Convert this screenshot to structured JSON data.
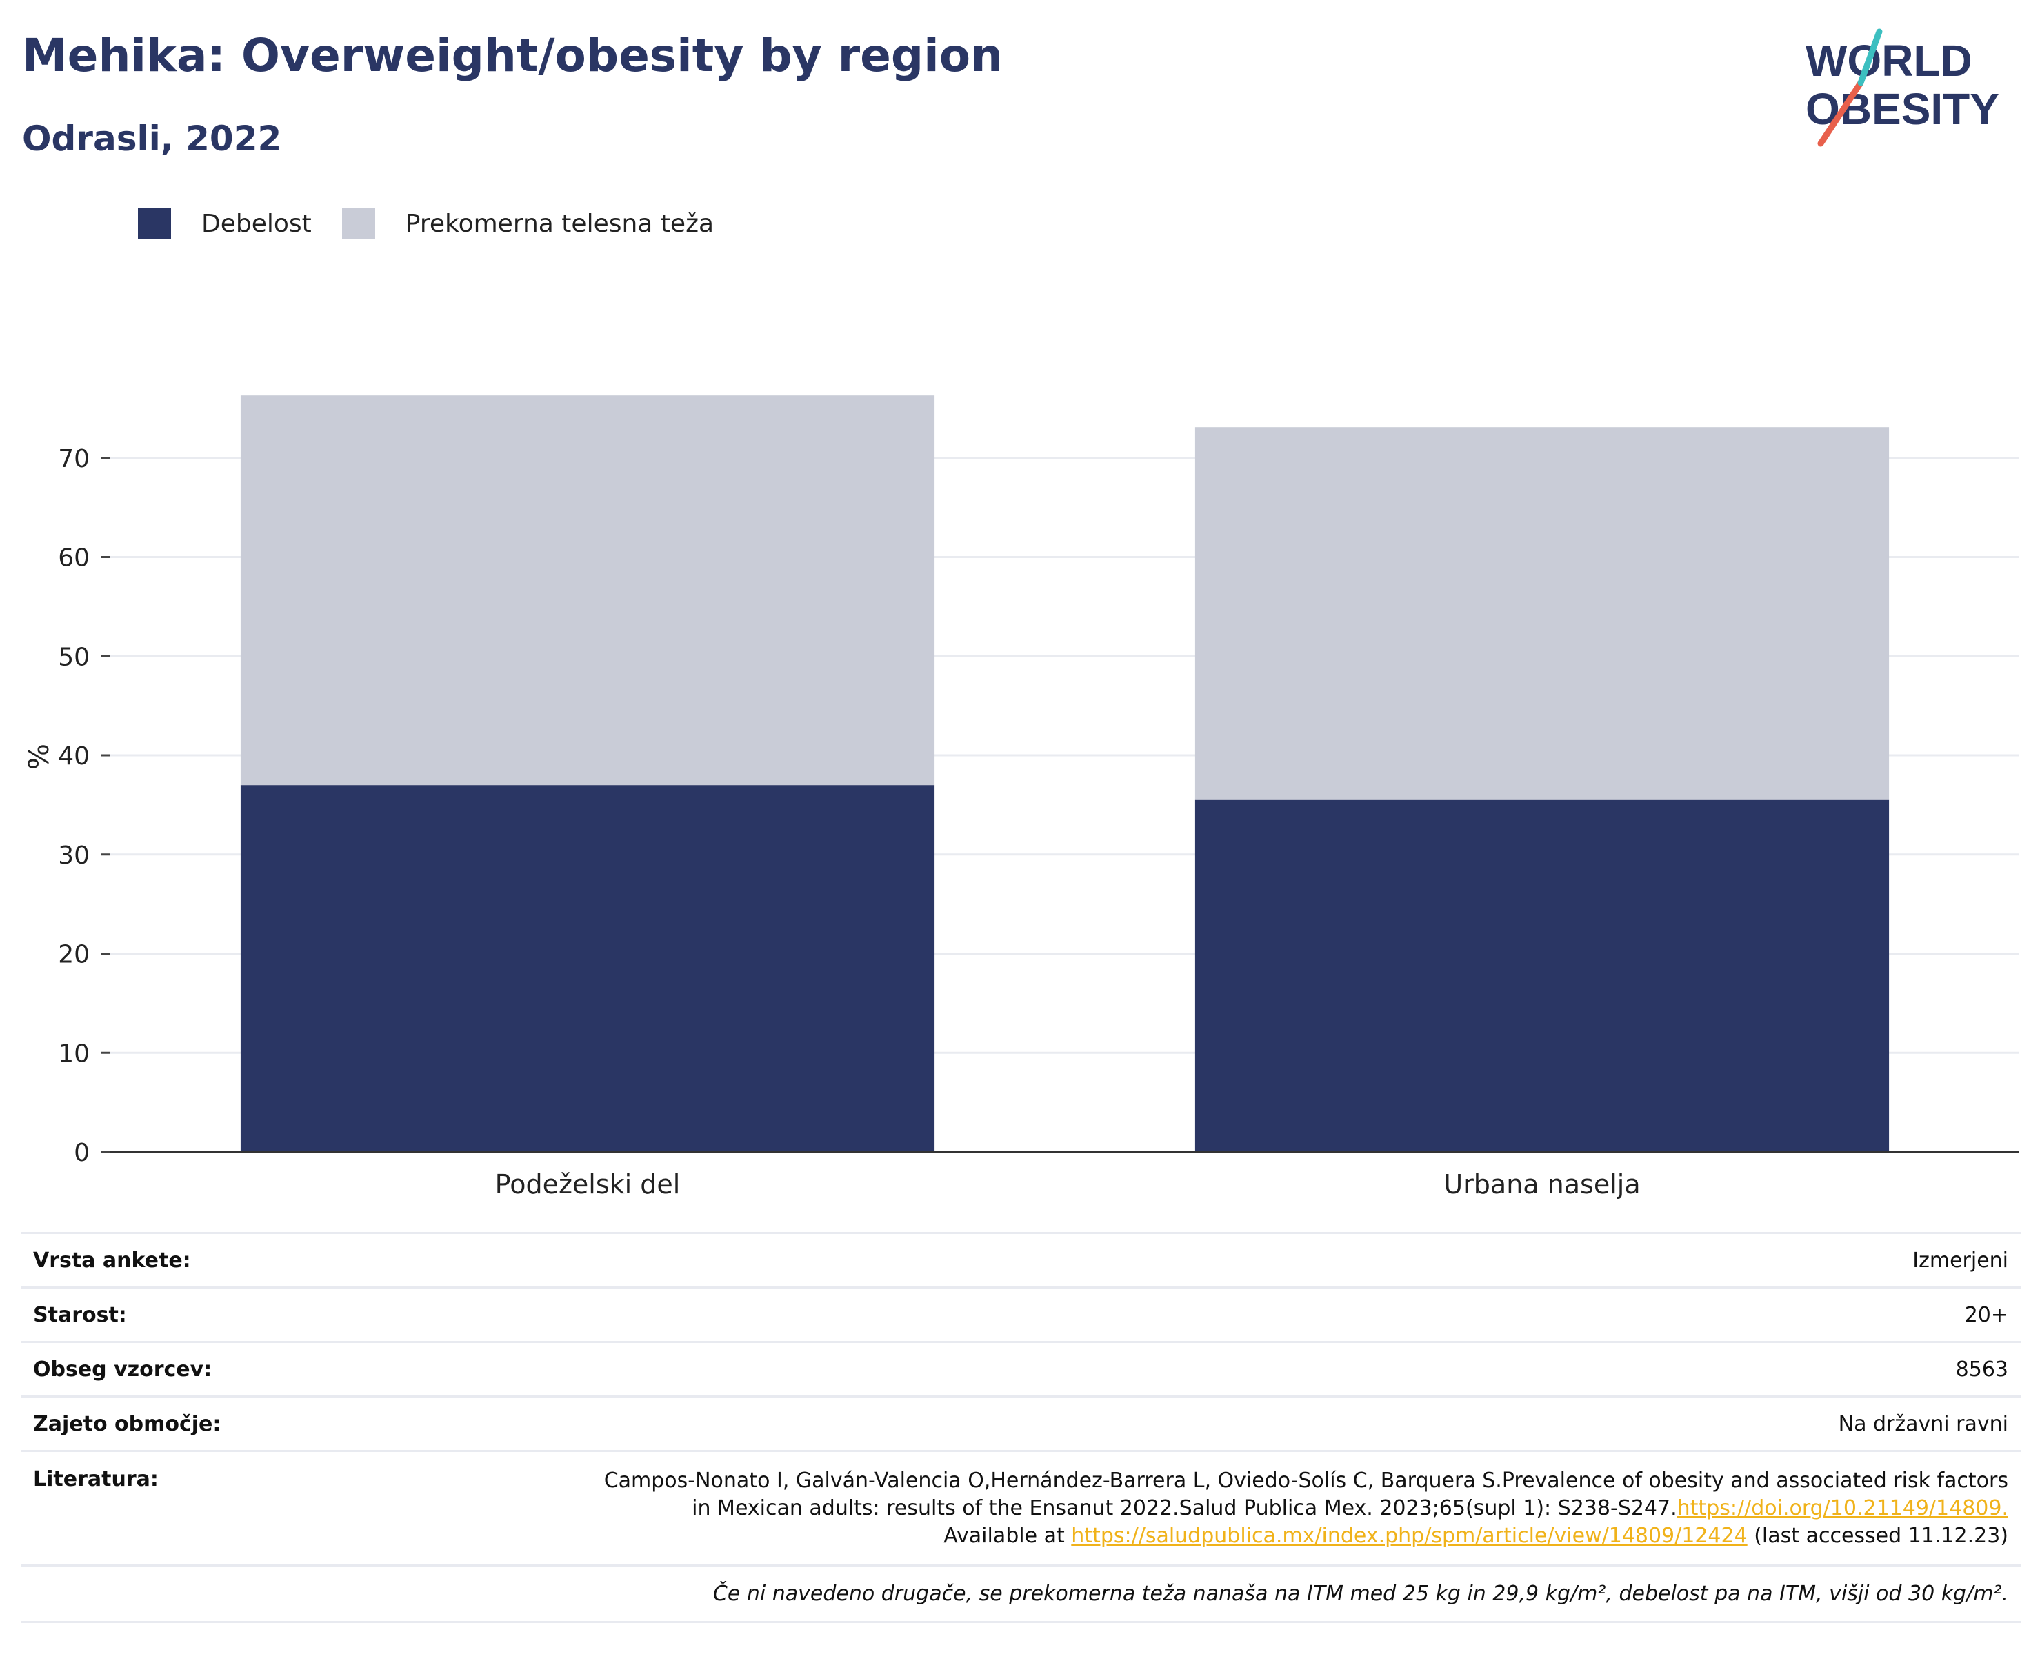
{
  "header": {
    "title": "Mehika: Overweight/obesity by region",
    "subtitle": "Odrasli, 2022"
  },
  "logo": {
    "line1": "WORLD",
    "line2": "OBESITY",
    "colors": {
      "text": "#2a3664",
      "accent_red": "#e8604c",
      "accent_teal": "#3cbfc0"
    }
  },
  "legend": [
    {
      "label": "Debelost",
      "color": "#2a3664"
    },
    {
      "label": "Prekomerna telesna teža",
      "color": "#c9ccd7"
    }
  ],
  "chart_data": {
    "type": "bar",
    "stacked": true,
    "categories": [
      "Podeželski del",
      "Urbana naselja"
    ],
    "series": [
      {
        "name": "Debelost",
        "color": "#2a3664",
        "values": [
          37.0,
          35.5
        ]
      },
      {
        "name": "Prekomerna telesna teža",
        "color": "#c9ccd7",
        "values": [
          39.3,
          37.6
        ]
      }
    ],
    "ylabel": "%",
    "ylim": [
      0,
      80
    ],
    "yticks": [
      0,
      10,
      20,
      30,
      40,
      50,
      60,
      70
    ],
    "grid": true,
    "legend_position": "top-left"
  },
  "meta": {
    "rows": [
      {
        "key": "Vrsta ankete:",
        "value": "Izmerjeni"
      },
      {
        "key": "Starost:",
        "value": "20+"
      },
      {
        "key": "Obseg vzorcev:",
        "value": "8563"
      },
      {
        "key": "Zajeto območje:",
        "value": "Na državni ravni"
      }
    ],
    "literature": {
      "key": "Literatura:",
      "line1": "Campos-Nonato I, Galván-Valencia O,Hernández-Barrera L, Oviedo-Solís C, Barquera S.Prevalence of obesity and associated risk factors",
      "line2": "in Mexican adults: results of the Ensanut 2022.Salud Publica Mex. 2023;65(supl 1): S238-S247.",
      "link1": "https://doi.org/10.21149/14809.",
      "line3a": "Available at ",
      "link2": "https://saludpublica.mx/index.php/spm/article/view/14809/12424",
      "line3b": " (last accessed 11.12.23)"
    },
    "note": "Če ni navedeno drugače, se prekomerna teža nanaša na ITM med 25 kg in 29,9 kg/m², debelost pa na ITM, višji od 30 kg/m²."
  }
}
